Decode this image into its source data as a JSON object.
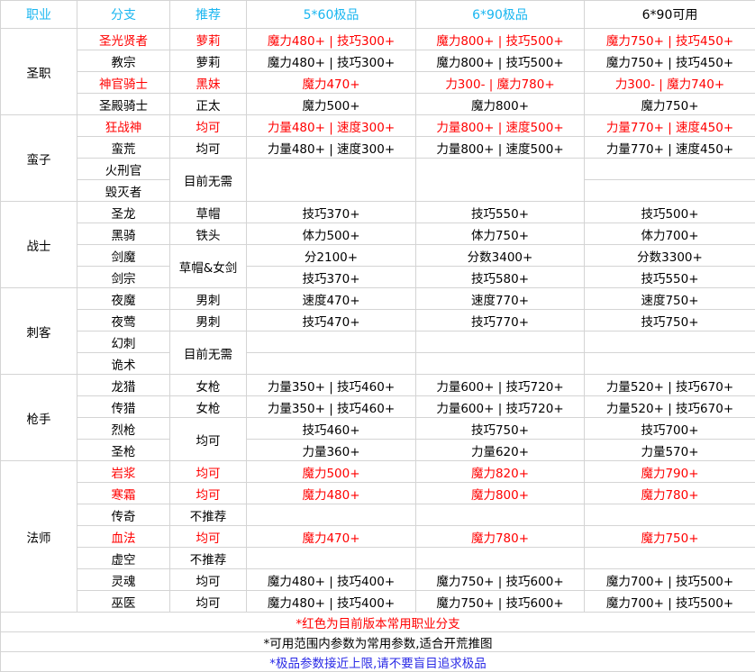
{
  "colors": {
    "header": "#19b6f0",
    "hot": "#ff0000",
    "note_hot": "#ff0000",
    "note_info": "#000000",
    "note_warn": "#2a2ae6"
  },
  "header": [
    "职业",
    "分支",
    "推荐",
    "5*60极品",
    "6*90极品",
    "6*90可用"
  ],
  "header_colored": [
    true,
    true,
    true,
    true,
    true,
    false
  ],
  "groups": [
    {
      "class": "圣职",
      "branches": [
        {
          "name": "圣光贤者",
          "rec": "萝莉",
          "v": [
            "魔力480+ | 技巧300+",
            "魔力800+ | 技巧500+",
            "魔力750+ | 技巧450+"
          ],
          "hot": true
        },
        {
          "name": "教宗",
          "rec": "萝莉",
          "v": [
            "魔力480+ | 技巧300+",
            "魔力800+ | 技巧500+",
            "魔力750+ | 技巧450+"
          ],
          "hot": false
        },
        {
          "name": "神官骑士",
          "rec": "黑妹",
          "v": [
            "魔力470+",
            "力300- | 魔力780+",
            "力300- | 魔力740+"
          ],
          "hot": true
        },
        {
          "name": "圣殿骑士",
          "rec": "正太",
          "v": [
            "魔力500+",
            "魔力800+",
            "魔力750+"
          ],
          "hot": false
        }
      ]
    },
    {
      "class": "蛮子",
      "branches": [
        {
          "name": "狂战神",
          "rec": "均可",
          "v": [
            "力量480+ | 速度300+",
            "力量800+ | 速度500+",
            "力量770+ | 速度450+"
          ],
          "hot": true
        },
        {
          "name": "蛮荒",
          "rec": "均可",
          "v": [
            "力量480+ | 速度300+",
            "力量800+ | 速度500+",
            "力量770+ | 速度450+"
          ],
          "hot": false
        },
        {
          "name": "火刑官",
          "rec": "目前无需",
          "v": [
            "",
            "",
            ""
          ],
          "hot": false
        },
        {
          "name": "毁灭者",
          "rec": null,
          "v": [
            null,
            null,
            ""
          ],
          "hot": false
        }
      ]
    },
    {
      "class": "战士",
      "branches": [
        {
          "name": "圣龙",
          "rec": "草帽",
          "v": [
            "技巧370+",
            "技巧550+",
            "技巧500+"
          ],
          "hot": false
        },
        {
          "name": "黑骑",
          "rec": "铁头",
          "v": [
            "体力500+",
            "体力750+",
            "体力700+"
          ],
          "hot": false
        },
        {
          "name": "剑魔",
          "rec": "草帽&女剑",
          "v": [
            "分2100+",
            "分数3400+",
            "分数3300+"
          ],
          "hot": false
        },
        {
          "name": "剑宗",
          "rec": null,
          "v": [
            "技巧370+",
            "技巧580+",
            "技巧550+"
          ],
          "hot": false
        }
      ]
    },
    {
      "class": "刺客",
      "branches": [
        {
          "name": "夜魔",
          "rec": "男刺",
          "v": [
            "速度470+",
            "速度770+",
            "速度750+"
          ],
          "hot": false
        },
        {
          "name": "夜莺",
          "rec": "男刺",
          "v": [
            "技巧470+",
            "技巧770+",
            "技巧750+"
          ],
          "hot": false
        },
        {
          "name": "幻刺",
          "rec": "目前无需",
          "v": [
            "",
            "",
            ""
          ],
          "hot": false
        },
        {
          "name": "诡术",
          "rec": null,
          "v": [
            "",
            "",
            ""
          ],
          "hot": false
        }
      ]
    },
    {
      "class": "枪手",
      "branches": [
        {
          "name": "龙猎",
          "rec": "女枪",
          "v": [
            "力量350+ | 技巧460+",
            "力量600+ | 技巧720+",
            "力量520+ | 技巧670+"
          ],
          "hot": false
        },
        {
          "name": "传猎",
          "rec": "女枪",
          "v": [
            "力量350+ | 技巧460+",
            "力量600+ | 技巧720+",
            "力量520+ | 技巧670+"
          ],
          "hot": false
        },
        {
          "name": "烈枪",
          "rec": "均可",
          "v": [
            "技巧460+",
            "技巧750+",
            "技巧700+"
          ],
          "hot": false
        },
        {
          "name": "圣枪",
          "rec": null,
          "v": [
            "力量360+",
            "力量620+",
            "力量570+"
          ],
          "hot": false
        }
      ]
    },
    {
      "class": "法师",
      "branches": [
        {
          "name": "岩浆",
          "rec": "均可",
          "v": [
            "魔力500+",
            "魔力820+",
            "魔力790+"
          ],
          "hot": true
        },
        {
          "name": "寒霜",
          "rec": "均可",
          "v": [
            "魔力480+",
            "魔力800+",
            "魔力780+"
          ],
          "hot": true
        },
        {
          "name": "传奇",
          "rec": "不推荐",
          "v": [
            "",
            "",
            ""
          ],
          "hot": false
        },
        {
          "name": "血法",
          "rec": "均可",
          "v": [
            "魔力470+",
            "魔力780+",
            "魔力750+"
          ],
          "hot": true
        },
        {
          "name": "虚空",
          "rec": "不推荐",
          "v": [
            "",
            "",
            ""
          ],
          "hot": false
        },
        {
          "name": "灵魂",
          "rec": "均可",
          "v": [
            "魔力480+ | 技巧400+",
            "魔力750+ | 技巧600+",
            "魔力700+ | 技巧500+"
          ],
          "hot": false
        },
        {
          "name": "巫医",
          "rec": "均可",
          "v": [
            "魔力480+ | 技巧400+",
            "魔力750+ | 技巧600+",
            "魔力700+ | 技巧500+"
          ],
          "hot": false
        }
      ]
    }
  ],
  "notes": [
    {
      "text": "*红色为目前版本常用职业分支",
      "kind": "note_hot"
    },
    {
      "text": "*可用范围内参数为常用参数,适合开荒推图",
      "kind": "note_info"
    },
    {
      "text": "*极品参数接近上限,请不要盲目追求极品",
      "kind": "note_warn"
    }
  ]
}
